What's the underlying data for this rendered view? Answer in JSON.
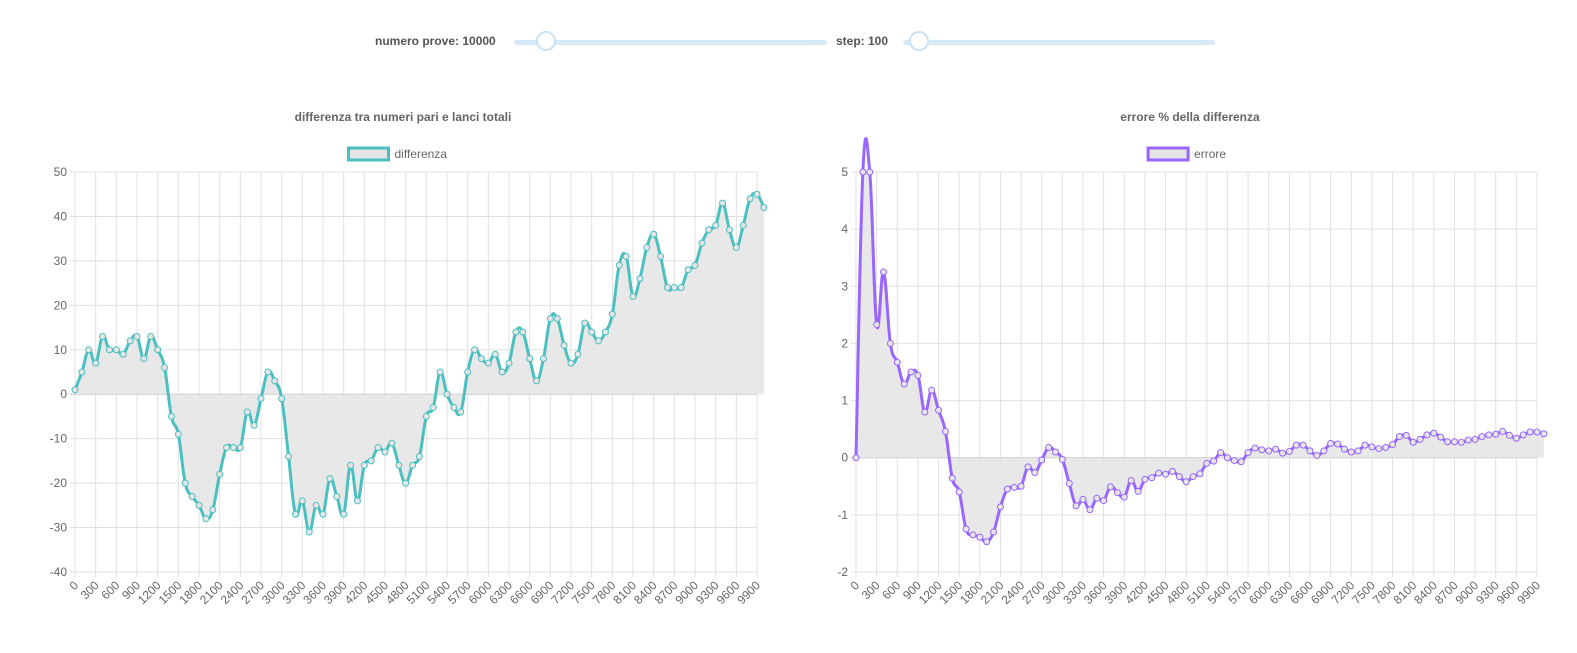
{
  "controls": {
    "trials_label": "numero prove: 10000",
    "trials_value": 10000,
    "trials_slider_fraction": 0.07,
    "step_label": "step: 100",
    "step_value": 100,
    "step_slider_fraction": 0.02
  },
  "chart_data": [
    {
      "type": "line",
      "title": "differenza tra numeri pari e lanci totali",
      "legend": "top-center",
      "grid": true,
      "fill": "origin",
      "x_ticks": [
        0,
        300,
        600,
        900,
        1200,
        1500,
        1800,
        2100,
        2400,
        2700,
        3000,
        3300,
        3600,
        3900,
        4200,
        4500,
        4800,
        5100,
        5400,
        5700,
        6000,
        6300,
        6600,
        6900,
        7200,
        7500,
        7800,
        8100,
        8400,
        8700,
        9000,
        9300,
        9600,
        9900
      ],
      "xlim": [
        0,
        9900
      ],
      "ylim": [
        -40,
        50
      ],
      "y_ticks": [
        -40,
        -30,
        -20,
        -10,
        0,
        10,
        20,
        30,
        40,
        50
      ],
      "series": [
        {
          "name": "differenza",
          "color": "#4bc0c0",
          "fill_color": "#e5e5e5",
          "values": [
            1,
            5,
            10,
            7,
            13,
            10,
            10,
            9,
            12,
            13,
            8,
            13,
            10,
            6,
            -5,
            -9,
            -20,
            -23,
            -25,
            -28,
            -26,
            -18,
            -12,
            -12,
            -12,
            -4,
            -7,
            -1,
            5,
            3,
            -1,
            -14,
            -27,
            -24,
            -31,
            -25,
            -27,
            -19,
            -23,
            -27,
            -16,
            -24,
            -16,
            -15,
            -12,
            -13,
            -11,
            -16,
            -20,
            -16,
            -14,
            -5,
            -3,
            5,
            0,
            -3,
            -4,
            5,
            10,
            8,
            7,
            9,
            5,
            7,
            14,
            14,
            8,
            3,
            8,
            17,
            17,
            11,
            7,
            9,
            16,
            14,
            12,
            14,
            18,
            29,
            31,
            22,
            26,
            33,
            36,
            31,
            24,
            24,
            24,
            28,
            29,
            34,
            37,
            38,
            43,
            37,
            33,
            38,
            44,
            45,
            42
          ]
        }
      ]
    },
    {
      "type": "line",
      "title": "errore % della differenza",
      "legend": "top-center",
      "grid": true,
      "fill": "origin",
      "x_ticks": [
        0,
        300,
        600,
        900,
        1200,
        1500,
        1800,
        2100,
        2400,
        2700,
        3000,
        3300,
        3600,
        3900,
        4200,
        4500,
        4800,
        5100,
        5400,
        5700,
        6000,
        6300,
        6600,
        6900,
        7200,
        7500,
        7800,
        8100,
        8400,
        8700,
        9000,
        9300,
        9600,
        9900
      ],
      "xlim": [
        0,
        9900
      ],
      "ylim": [
        -2,
        5
      ],
      "y_ticks": [
        -2,
        -1,
        0,
        1,
        2,
        3,
        4,
        5
      ],
      "series": [
        {
          "name": "errore",
          "color": "#9966ff",
          "fill_color": "#e5e5e5",
          "values": [
            0,
            5,
            5,
            2.33,
            3.25,
            2,
            1.67,
            1.29,
            1.5,
            1.44,
            0.8,
            1.18,
            0.83,
            0.46,
            -0.36,
            -0.6,
            -1.25,
            -1.35,
            -1.39,
            -1.47,
            -1.3,
            -0.86,
            -0.55,
            -0.52,
            -0.5,
            -0.16,
            -0.26,
            -0.04,
            0.18,
            0.1,
            -0.03,
            -0.45,
            -0.84,
            -0.73,
            -0.91,
            -0.71,
            -0.75,
            -0.51,
            -0.61,
            -0.69,
            -0.4,
            -0.59,
            -0.38,
            -0.35,
            -0.27,
            -0.29,
            -0.24,
            -0.33,
            -0.42,
            -0.33,
            -0.28,
            -0.1,
            -0.06,
            0.09,
            0,
            -0.05,
            -0.07,
            0.09,
            0.17,
            0.14,
            0.12,
            0.15,
            0.08,
            0.11,
            0.22,
            0.22,
            0.12,
            0.04,
            0.12,
            0.25,
            0.24,
            0.15,
            0.1,
            0.12,
            0.22,
            0.19,
            0.16,
            0.18,
            0.23,
            0.37,
            0.39,
            0.27,
            0.32,
            0.4,
            0.43,
            0.36,
            0.28,
            0.28,
            0.27,
            0.31,
            0.32,
            0.37,
            0.4,
            0.41,
            0.46,
            0.39,
            0.34,
            0.4,
            0.45,
            0.45,
            0.42
          ]
        }
      ]
    }
  ]
}
